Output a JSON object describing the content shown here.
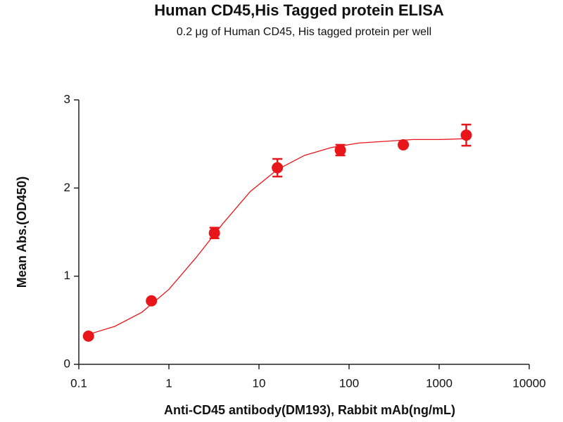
{
  "chart_data": {
    "type": "scatter",
    "title": "Human CD45,His Tagged protein ELISA",
    "subtitle": "0.2 μg of Human CD45, His tagged protein per well",
    "x_label": "Anti-CD45 antibody(DM193), Rabbit mAb(ng/mL)",
    "y_label": "Mean Abs.(OD450)",
    "x": [
      0.128,
      0.64,
      3.2,
      16,
      80,
      400,
      2000
    ],
    "values": [
      0.32,
      0.72,
      1.49,
      2.23,
      2.43,
      2.49,
      2.6
    ],
    "errors": [
      0.01,
      0.01,
      0.06,
      0.1,
      0.06,
      0.02,
      0.12
    ],
    "color": "#e8161b",
    "fit_curve": {
      "x": [
        0.128,
        0.25,
        0.5,
        1,
        2,
        4,
        8,
        16,
        32,
        64,
        128,
        256,
        512,
        1024,
        2048
      ],
      "values": [
        0.34,
        0.43,
        0.59,
        0.85,
        1.21,
        1.6,
        1.96,
        2.21,
        2.37,
        2.46,
        2.51,
        2.53,
        2.55,
        2.55,
        2.56
      ]
    },
    "xscale": "log",
    "xlim": [
      0.1,
      10000
    ],
    "xticks": [
      0.1,
      1,
      10,
      100,
      1000,
      10000
    ],
    "ylim": [
      0,
      3
    ],
    "yticks": [
      0,
      1,
      2,
      3
    ],
    "grid": false
  }
}
